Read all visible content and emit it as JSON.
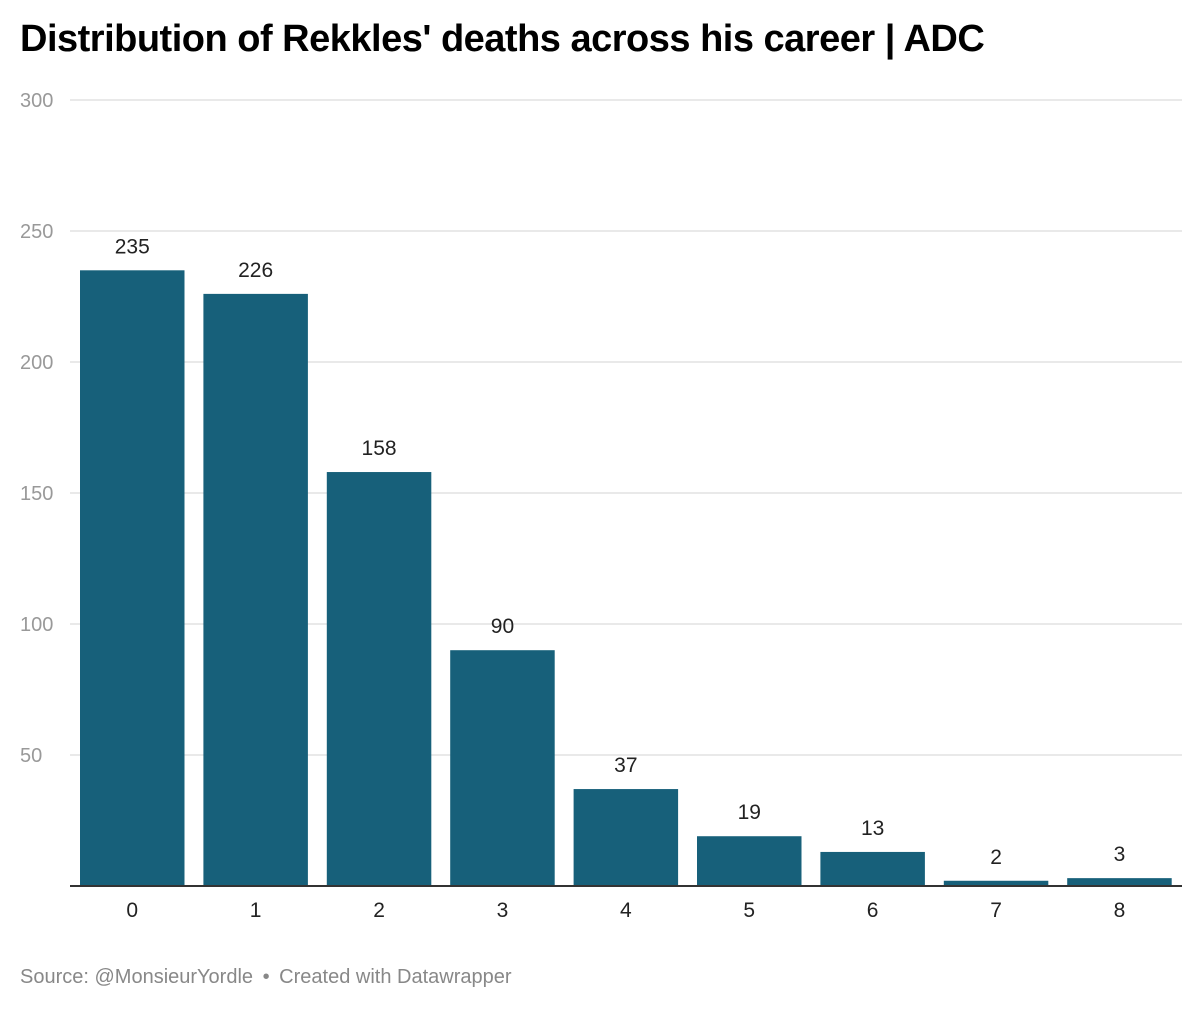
{
  "chart_data": {
    "type": "bar",
    "title": "Distribution of Rekkles' deaths across his career | ADC",
    "xlabel": "",
    "ylabel": "",
    "categories": [
      "0",
      "1",
      "2",
      "3",
      "4",
      "5",
      "6",
      "7",
      "8"
    ],
    "values": [
      235,
      226,
      158,
      90,
      37,
      19,
      13,
      2,
      3
    ],
    "ylim": [
      0,
      300
    ],
    "yticks": [
      50,
      100,
      150,
      200,
      250,
      300
    ],
    "grid": true,
    "legend": "none"
  },
  "footer": {
    "source": "Source: @MonsieurYordle",
    "separator": "•",
    "credit": "Created with Datawrapper"
  },
  "colors": {
    "bar": "#17607a",
    "grid": "#e2e2e2",
    "axis": "#333333",
    "tick_label": "#999999",
    "category_label": "#222222",
    "value_label": "#222222"
  }
}
